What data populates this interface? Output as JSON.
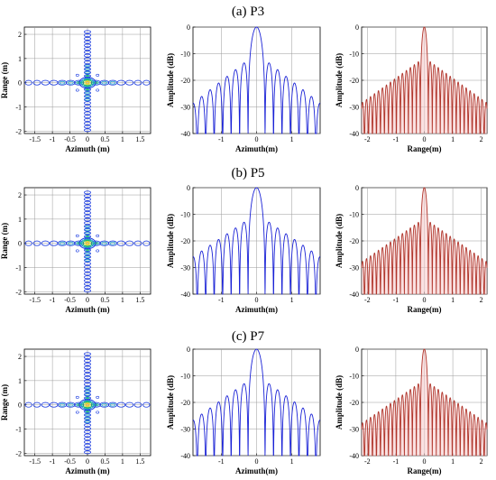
{
  "figure": {
    "row_titles": [
      "(a) P3",
      "(b) P5",
      "(c) P7"
    ]
  },
  "colors": {
    "azimuth_profile": "#1a22d6",
    "range_profile": "#b0342a",
    "range_profile_fill": "#f6c9c9",
    "contour_levels": [
      "#1f3fe0",
      "#18a4c8",
      "#20c060",
      "#cfe040",
      "#f0c020"
    ],
    "grid": "#9a9a9a"
  },
  "chart_data": [
    {
      "panel": "a-contour",
      "type": "heatmap",
      "subtype": "contour",
      "xlabel": "Azimuth (m)",
      "ylabel": "Range (m)",
      "xlim": [
        -1.8,
        1.8
      ],
      "ylim": [
        -2.1,
        2.3
      ],
      "xticks": [
        "-1.5",
        "-1",
        "-0.5",
        "0",
        "0.5",
        "1",
        "1.5"
      ],
      "yticks": [
        "-2",
        "-1",
        "0",
        "1",
        "2"
      ],
      "peak": [
        0,
        0
      ],
      "grid": true
    },
    {
      "panel": "a-azimuth",
      "type": "line",
      "xlabel": "Azimuth(m)",
      "ylabel": "Amplitude (dB)",
      "xlim": [
        -1.8,
        1.8
      ],
      "ylim": [
        -40,
        0
      ],
      "xticks": [
        "-1",
        "0",
        "1"
      ],
      "yticks": [
        "0",
        "-10",
        "-20",
        "-30",
        "-40"
      ],
      "lobe_spacing": 0.24,
      "first_sidelobe_db": -13.5,
      "sidelobe_decay_db_per_unit": 10.5,
      "grid": true
    },
    {
      "panel": "a-range",
      "type": "line",
      "xlabel": "Range(m)",
      "ylabel": "Amplitude (dB)",
      "xlim": [
        -2.2,
        2.2
      ],
      "ylim": [
        -40,
        0
      ],
      "xticks": [
        "-2",
        "-1",
        "0",
        "1",
        "2"
      ],
      "yticks": [
        "0",
        "-10",
        "-20",
        "-30",
        "-40"
      ],
      "lobe_spacing": 0.14,
      "first_sidelobe_db": -13.0,
      "sidelobe_decay_db_per_unit": 7.8,
      "grid": true
    },
    {
      "panel": "b-contour",
      "type": "heatmap",
      "subtype": "contour",
      "xlabel": "Azimuth (m)",
      "ylabel": "Range (m)",
      "xlim": [
        -1.8,
        1.8
      ],
      "ylim": [
        -2.1,
        2.3
      ],
      "xticks": [
        "-1.5",
        "-1",
        "-0.5",
        "0",
        "0.5",
        "1",
        "1.5"
      ],
      "yticks": [
        "-2",
        "-1",
        "0",
        "1",
        "2"
      ],
      "peak": [
        0,
        0
      ],
      "grid": true
    },
    {
      "panel": "b-azimuth",
      "type": "line",
      "xlabel": "Azimuth(m)",
      "ylabel": "Amplitude (dB)",
      "xlim": [
        -1.8,
        1.8
      ],
      "ylim": [
        -40,
        0
      ],
      "xticks": [
        "-1",
        "0",
        "1"
      ],
      "yticks": [
        "0",
        "-10",
        "-20",
        "-30",
        "-40"
      ],
      "lobe_spacing": 0.24,
      "first_sidelobe_db": -13.0,
      "sidelobe_decay_db_per_unit": 9.0,
      "grid": true
    },
    {
      "panel": "b-range",
      "type": "line",
      "xlabel": "Range(m)",
      "ylabel": "Amplitude (dB)",
      "xlim": [
        -2.2,
        2.2
      ],
      "ylim": [
        -40,
        0
      ],
      "xticks": [
        "-2",
        "-1",
        "0",
        "1",
        "2"
      ],
      "yticks": [
        "0",
        "-10",
        "-20",
        "-30",
        "-40"
      ],
      "lobe_spacing": 0.14,
      "first_sidelobe_db": -13.0,
      "sidelobe_decay_db_per_unit": 7.5,
      "grid": true
    },
    {
      "panel": "c-contour",
      "type": "heatmap",
      "subtype": "contour",
      "xlabel": "Azimuth (m)",
      "ylabel": "Range (m)",
      "xlim": [
        -1.8,
        1.8
      ],
      "ylim": [
        -2.1,
        2.3
      ],
      "xticks": [
        "-1.5",
        "-1",
        "-0.5",
        "0",
        "0.5",
        "1",
        "1.5"
      ],
      "yticks": [
        "-2",
        "-1",
        "0",
        "1",
        "2"
      ],
      "peak": [
        0,
        0
      ],
      "grid": true
    },
    {
      "panel": "c-azimuth",
      "type": "line",
      "xlabel": "Azimuth(m)",
      "ylabel": "Amplitude (dB)",
      "xlim": [
        -1.8,
        1.8
      ],
      "ylim": [
        -40,
        0
      ],
      "xticks": [
        "-1",
        "0",
        "1"
      ],
      "yticks": [
        "0",
        "-10",
        "-20",
        "-30",
        "-40"
      ],
      "lobe_spacing": 0.24,
      "first_sidelobe_db": -13.0,
      "sidelobe_decay_db_per_unit": 9.5,
      "grid": true
    },
    {
      "panel": "c-range",
      "type": "line",
      "xlabel": "Range(m)",
      "ylabel": "Amplitude (dB)",
      "xlim": [
        -2.2,
        2.2
      ],
      "ylim": [
        -40,
        0
      ],
      "xticks": [
        "-2",
        "-1",
        "0",
        "1",
        "2"
      ],
      "yticks": [
        "0",
        "-10",
        "-20",
        "-30",
        "-40"
      ],
      "lobe_spacing": 0.14,
      "first_sidelobe_db": -13.0,
      "sidelobe_decay_db_per_unit": 7.5,
      "grid": true
    }
  ]
}
